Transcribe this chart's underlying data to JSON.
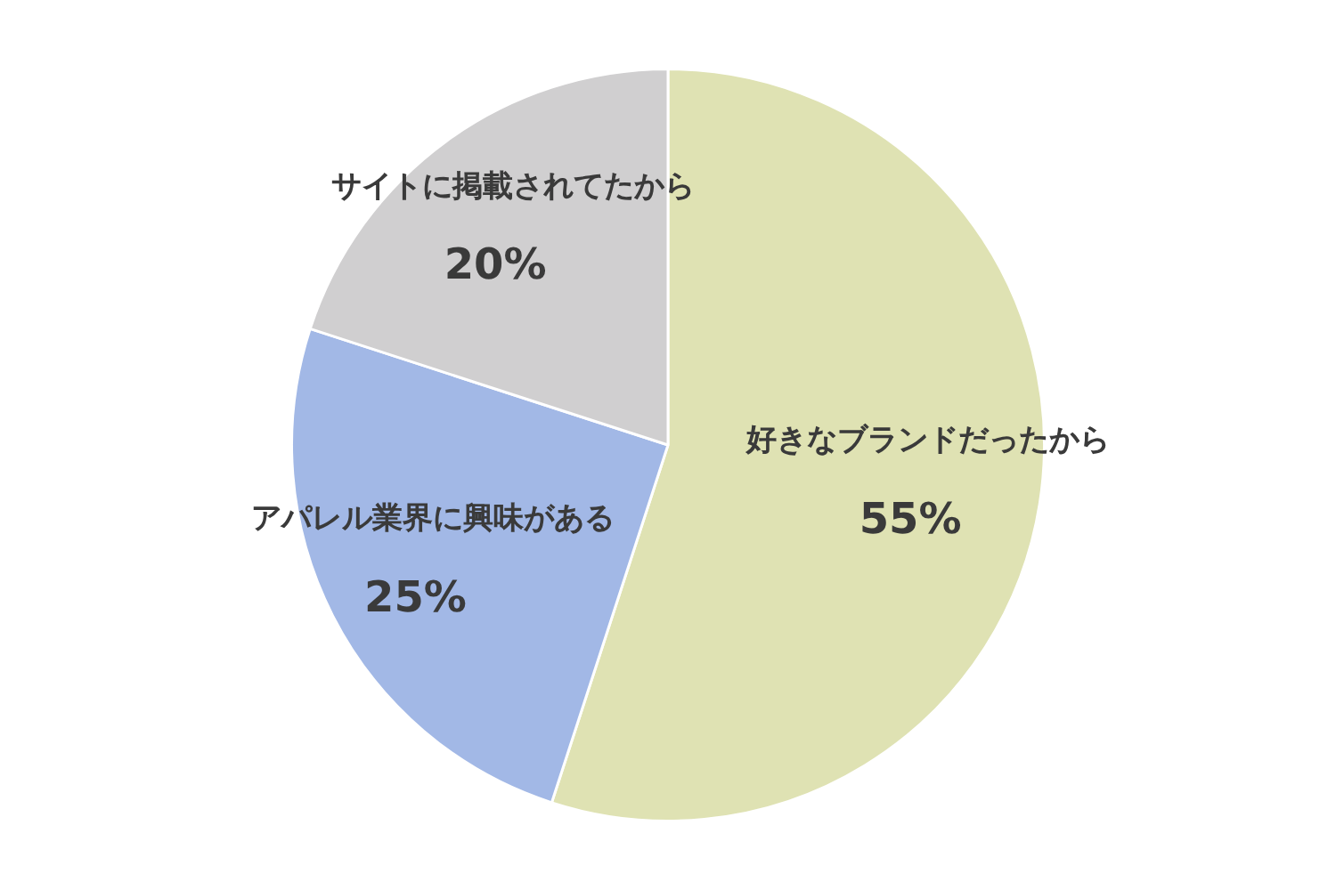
{
  "chart_data": {
    "type": "pie",
    "categories": [
      "好きなブランドだったから",
      "アパレル業界に興味がある",
      "サイトに掲載されてたから"
    ],
    "values": [
      55,
      25,
      20
    ],
    "colors": [
      "#dfe2b3",
      "#a2b8e6",
      "#d0cfd0"
    ],
    "value_labels": [
      "55%",
      "25%",
      "20%"
    ],
    "legend": false
  }
}
